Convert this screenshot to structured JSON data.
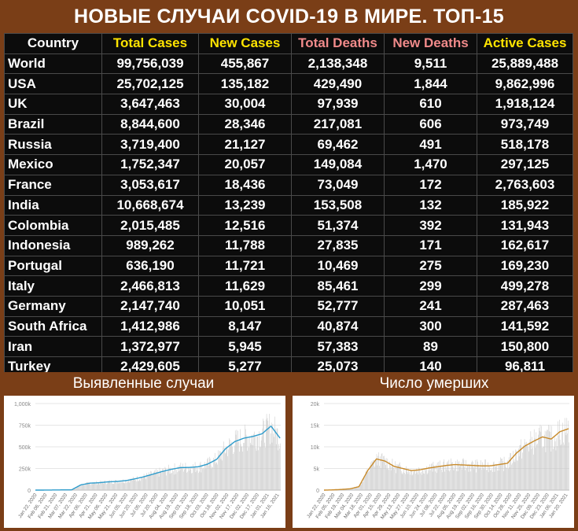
{
  "title": "НОВЫЕ СЛУЧАИ COVID-19 В МИРЕ. ТОП-15",
  "table": {
    "headers": [
      "Country",
      "Total Cases",
      "New Cases",
      "Total Deaths",
      "New Deaths",
      "Active Cases"
    ],
    "header_colors": [
      "#ffffff",
      "#ffe400",
      "#ffe400",
      "#f08a8a",
      "#f08a8a",
      "#ffe400"
    ],
    "rows": [
      [
        "World",
        "99,756,039",
        "455,867",
        "2,138,348",
        "9,511",
        "25,889,488"
      ],
      [
        "USA",
        "25,702,125",
        "135,182",
        "429,490",
        "1,844",
        "9,862,996"
      ],
      [
        "UK",
        "3,647,463",
        "30,004",
        "97,939",
        "610",
        "1,918,124"
      ],
      [
        "Brazil",
        "8,844,600",
        "28,346",
        "217,081",
        "606",
        "973,749"
      ],
      [
        "Russia",
        "3,719,400",
        "21,127",
        "69,462",
        "491",
        "518,178"
      ],
      [
        "Mexico",
        "1,752,347",
        "20,057",
        "149,084",
        "1,470",
        "297,125"
      ],
      [
        "France",
        "3,053,617",
        "18,436",
        "73,049",
        "172",
        "2,763,603"
      ],
      [
        "India",
        "10,668,674",
        "13,239",
        "153,508",
        "132",
        "185,922"
      ],
      [
        "Colombia",
        "2,015,485",
        "12,516",
        "51,374",
        "392",
        "131,943"
      ],
      [
        "Indonesia",
        "989,262",
        "11,788",
        "27,835",
        "171",
        "162,617"
      ],
      [
        "Portugal",
        "636,190",
        "11,721",
        "10,469",
        "275",
        "169,230"
      ],
      [
        "Italy",
        "2,466,813",
        "11,629",
        "85,461",
        "299",
        "499,278"
      ],
      [
        "Germany",
        "2,147,740",
        "10,051",
        "52,777",
        "241",
        "287,463"
      ],
      [
        "South Africa",
        "1,412,986",
        "8,147",
        "40,874",
        "300",
        "141,592"
      ],
      [
        "Iran",
        "1,372,977",
        "5,945",
        "57,383",
        "89",
        "150,800"
      ],
      [
        "Turkey",
        "2,429,605",
        "5,277",
        "25,073",
        "140",
        "96,811"
      ]
    ]
  },
  "left_panel_title": "Выявленные случаи",
  "right_panel_title": "Число умерших",
  "colors": {
    "background": "#7a3e17",
    "line_cases": "#2e9ccc",
    "line_deaths": "#c88a2a",
    "bars": "#c8c8c8"
  },
  "chart_data": [
    {
      "type": "bar",
      "title": "Выявленные случаи",
      "ylim": [
        0,
        1000000
      ],
      "yticks": [
        "0",
        "250k",
        "500k",
        "750k",
        "1,000k"
      ],
      "xticks": [
        "Jan 22, 2020",
        "Feb 06, 2020",
        "Feb 21, 2020",
        "Mar 07, 2020",
        "Mar 22, 2020",
        "Apr 06, 2020",
        "Apr 21, 2020",
        "May 06, 2020",
        "May 21, 2020",
        "Jun 05, 2020",
        "Jun 20, 2020",
        "Jul 05, 2020",
        "Jul 20, 2020",
        "Aug 04, 2020",
        "Aug 19, 2020",
        "Sep 03, 2020",
        "Sep 18, 2020",
        "Oct 03, 2020",
        "Oct 18, 2020",
        "Nov 02, 2020",
        "Nov 17, 2020",
        "Dec 02, 2020",
        "Dec 17, 2020",
        "Jan 01, 2021",
        "Jan 16, 2021"
      ],
      "series_moving_average": [
        0,
        500,
        1500,
        2500,
        3000,
        60000,
        80000,
        85000,
        95000,
        100000,
        110000,
        130000,
        155000,
        185000,
        215000,
        240000,
        260000,
        262000,
        270000,
        300000,
        355000,
        480000,
        560000,
        600000,
        620000,
        650000,
        740000,
        600000
      ]
    },
    {
      "type": "bar",
      "title": "Число умерших",
      "ylim": [
        0,
        20000
      ],
      "yticks": [
        "0",
        "5k",
        "10k",
        "15k",
        "20k"
      ],
      "xticks": [
        "Jan 22, 2020",
        "Feb 05, 2020",
        "Feb 19, 2020",
        "Mar 04, 2020",
        "Mar 18, 2020",
        "Apr 01, 2020",
        "Apr 15, 2020",
        "Apr 29, 2020",
        "May 13, 2020",
        "May 27, 2020",
        "Jun 10, 2020",
        "Jun 24, 2020",
        "Jul 08, 2020",
        "Jul 22, 2020",
        "Aug 05, 2020",
        "Aug 19, 2020",
        "Sep 02, 2020",
        "Sep 16, 2020",
        "Sep 30, 2020",
        "Oct 14, 2020",
        "Oct 28, 2020",
        "Nov 11, 2020",
        "Nov 25, 2020",
        "Dec 09, 2020",
        "Dec 23, 2020",
        "Jan 06, 2021",
        "Jan 20, 2021"
      ],
      "series_moving_average": [
        0,
        50,
        150,
        300,
        800,
        4500,
        7200,
        6700,
        5500,
        5000,
        4500,
        4700,
        5100,
        5400,
        5700,
        5900,
        5800,
        5700,
        5600,
        5600,
        5900,
        6200,
        8500,
        10200,
        11300,
        12300,
        11800,
        13500,
        14200
      ]
    }
  ]
}
